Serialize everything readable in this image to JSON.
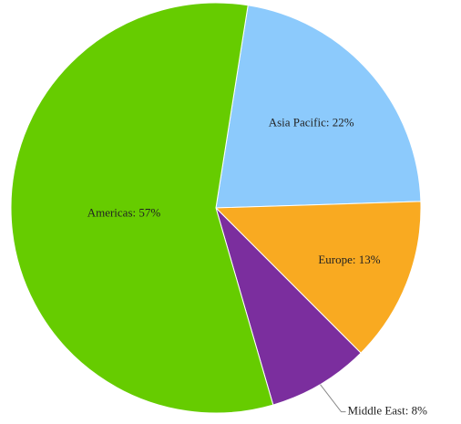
{
  "chart_data": {
    "type": "pie",
    "values": [
      22,
      13,
      8,
      57
    ],
    "value_labels": [
      "Asia Pacific: 22%",
      "Europe: 13%",
      "Middle East: 8%",
      "Americas: 57%"
    ],
    "colors": [
      "#8ccafc",
      "#f9aa21",
      "#7b2e9e",
      "#66cc00"
    ]
  }
}
